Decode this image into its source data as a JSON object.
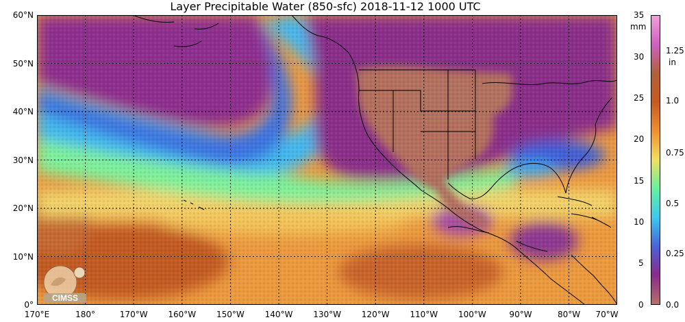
{
  "title": "Layer Precipitable Water (850-sfc)  2018-11-12 1000 UTC",
  "map": {
    "lat_labels": [
      "60°N",
      "50°N",
      "40°N",
      "30°N",
      "20°N",
      "10°N",
      "0°"
    ],
    "lon_labels": [
      "170°E",
      "180°",
      "170°W",
      "160°W",
      "150°W",
      "140°W",
      "130°W",
      "120°W",
      "110°W",
      "100°W",
      "90°W",
      "80°W",
      "70°W"
    ],
    "lat_range": [
      0,
      60
    ],
    "lon_range": [
      "170°E",
      "70°W"
    ],
    "gridlines": true
  },
  "colorbar": {
    "mm_unit": "mm",
    "in_unit": "in",
    "mm_ticks": [
      "35",
      "30",
      "25",
      "20",
      "15",
      "10",
      "5",
      "0"
    ],
    "in_ticks": [
      "1.25",
      "1.0",
      "0.75",
      "0.5",
      "0.25",
      "0.0"
    ],
    "colors": [
      "#b5706a",
      "#8b2a8a",
      "#4a62d8",
      "#3cc8ef",
      "#66f0a0",
      "#f0e060",
      "#f09030",
      "#c85a20",
      "#b06038",
      "#d060c0",
      "#f0a0d8"
    ]
  },
  "logo": {
    "text": "CIMSS"
  }
}
